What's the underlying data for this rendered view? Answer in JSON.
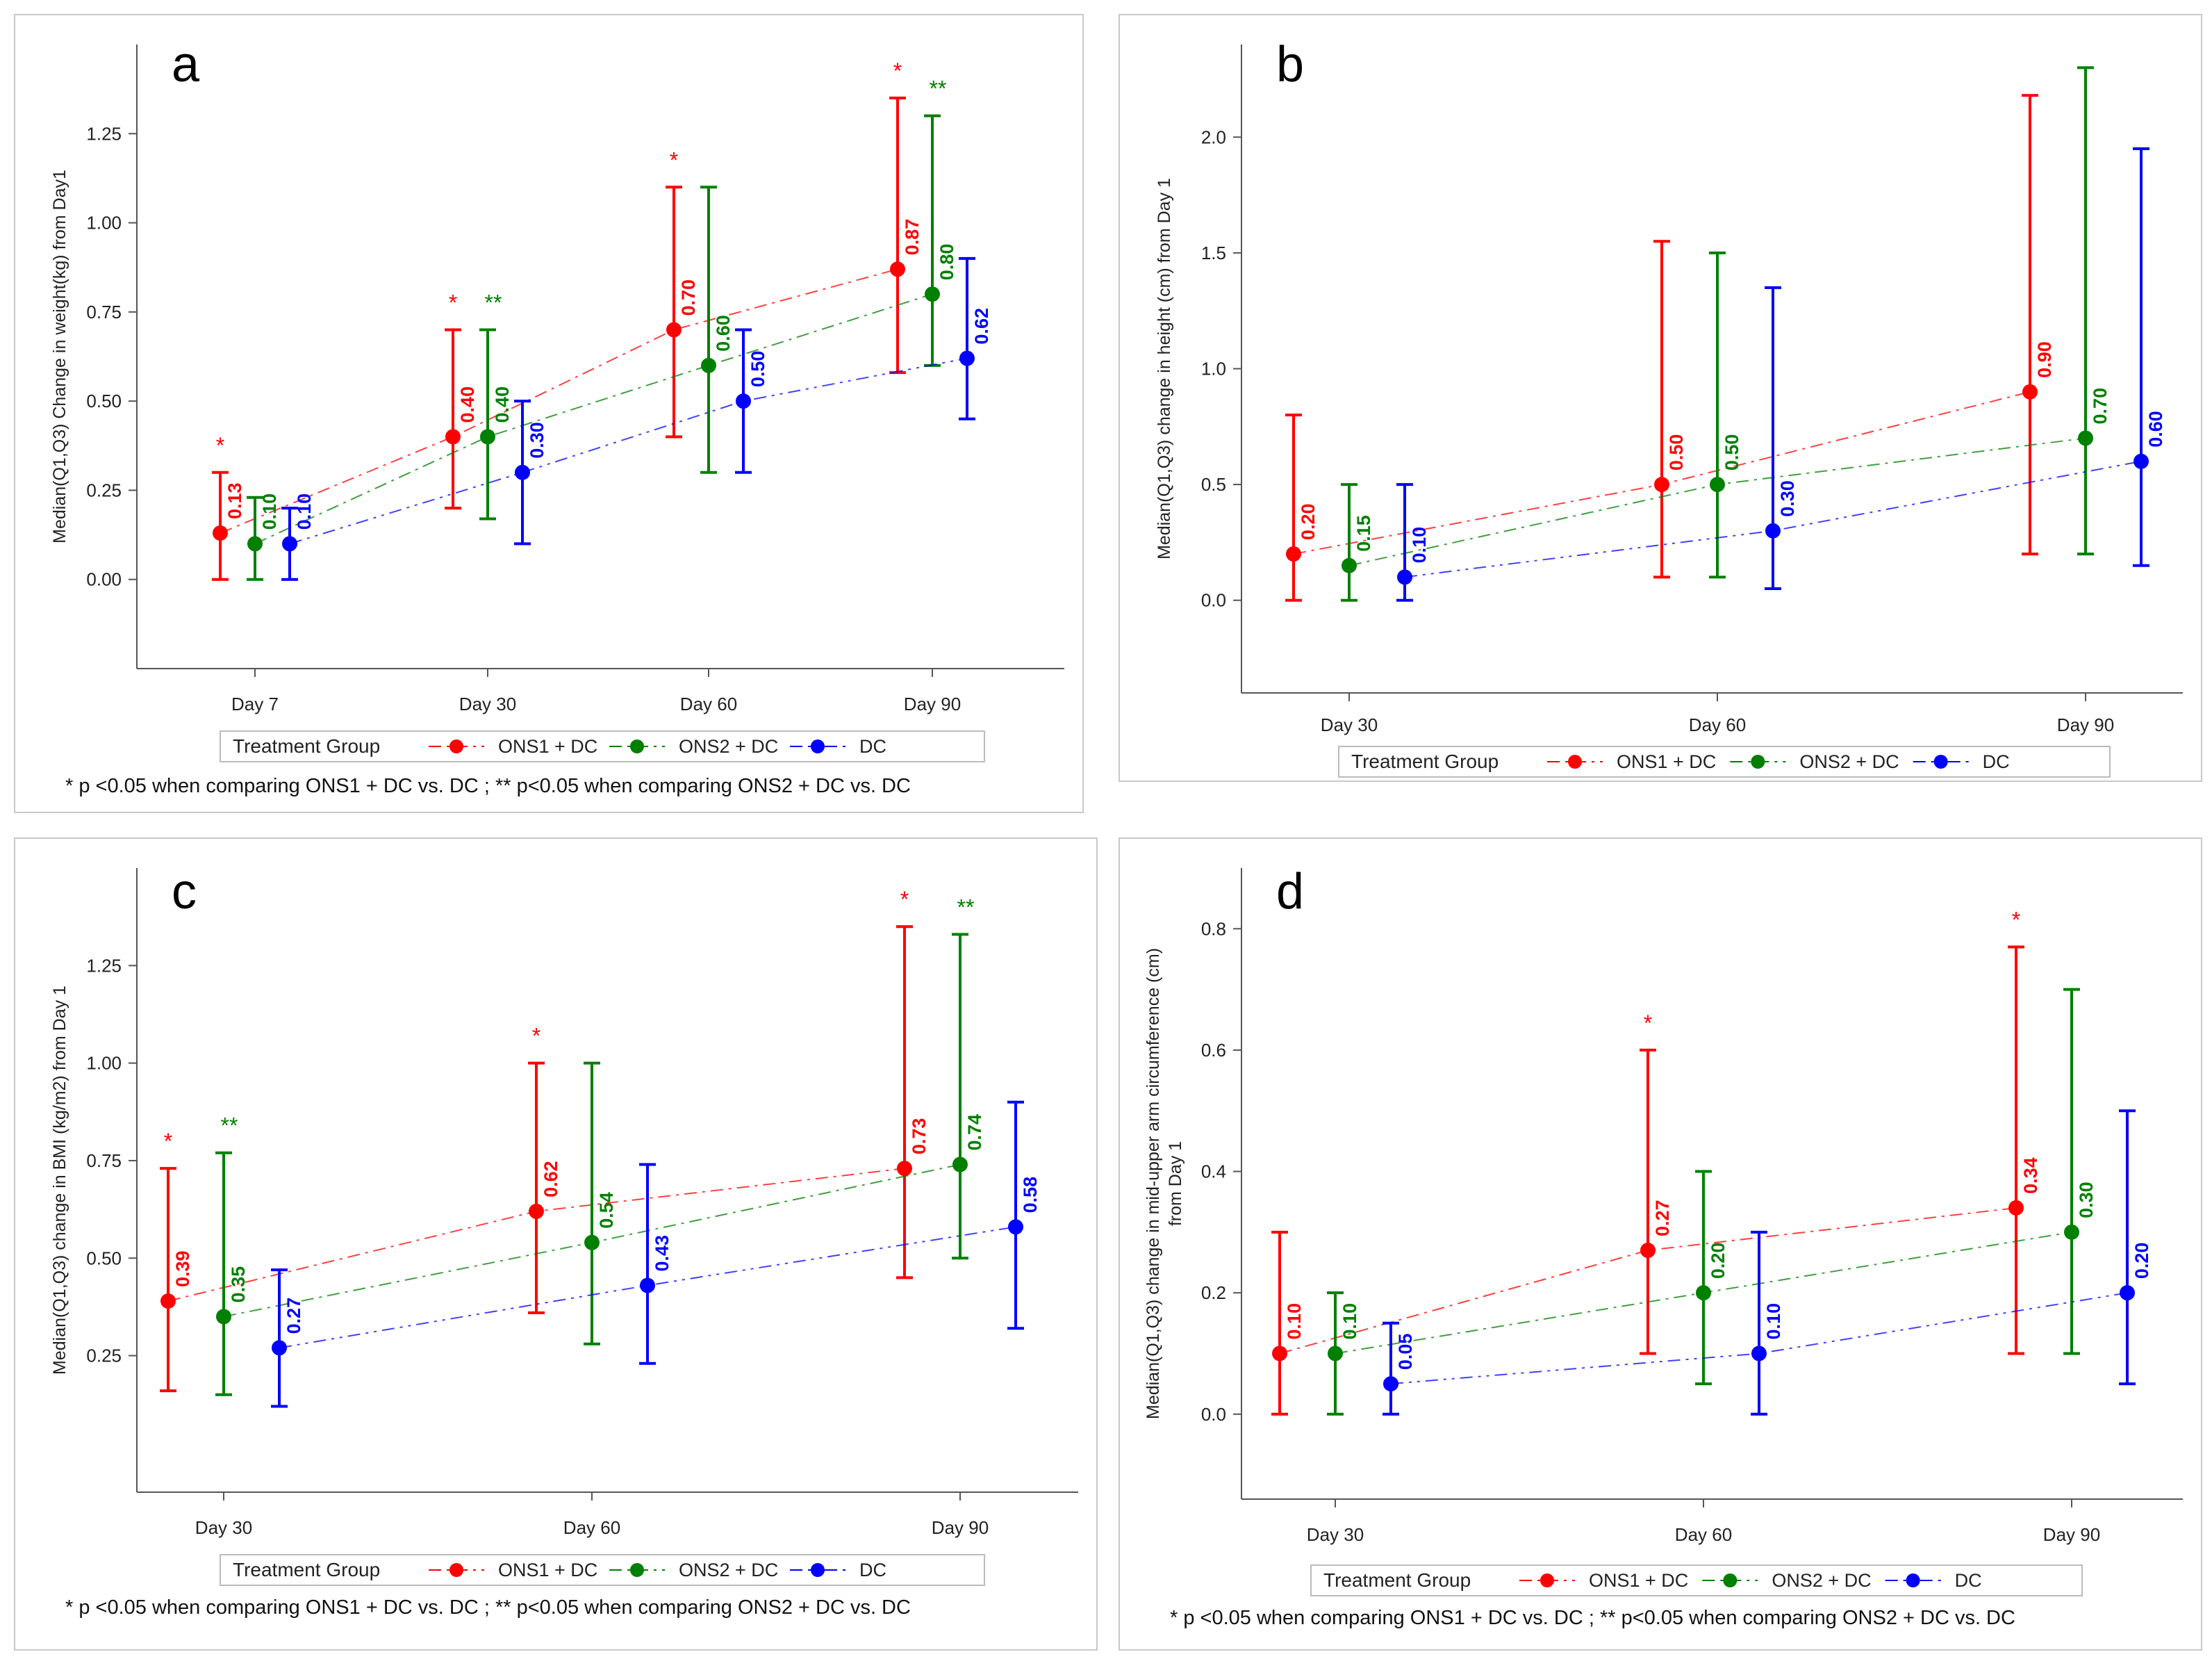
{
  "legend": {
    "title": "Treatment Group",
    "entries": [
      "ONS1 + DC",
      "ONS2 + DC",
      "DC"
    ]
  },
  "colors": {
    "ONS1 + DC": "#ff0000",
    "ONS2 + DC": "#008000",
    "DC": "#0000ff"
  },
  "chart_data": [
    {
      "panel_label": "a",
      "type": "line",
      "ylabel": "Median(Q1,Q3)  Change in weight(kg) from Day1",
      "ylabel_lines": [
        "Median(Q1,Q3)  Change in weight(kg) from Day1"
      ],
      "ylim": [
        -0.25,
        1.5
      ],
      "yticks": [
        "0.00",
        "0.25",
        "0.50",
        "0.75",
        "1.00",
        "1.25"
      ],
      "categories": [
        "Day 7",
        "Day 30",
        "Day 60",
        "Day 90"
      ],
      "series": [
        {
          "name": "ONS1 + DC",
          "median": [
            0.13,
            0.4,
            0.7,
            0.87
          ],
          "labels": [
            "0.13",
            "0.40",
            "0.70",
            "0.87"
          ],
          "q1": [
            0.0,
            0.2,
            0.4,
            0.58
          ],
          "q3": [
            0.3,
            0.7,
            1.1,
            1.35
          ],
          "stars": [
            "*",
            "*",
            "*",
            "*"
          ]
        },
        {
          "name": "ONS2 + DC",
          "median": [
            0.1,
            0.4,
            0.6,
            0.8
          ],
          "labels": [
            "0.10",
            "0.40",
            "0.60",
            "0.80"
          ],
          "q1": [
            0.0,
            0.17,
            0.3,
            0.6
          ],
          "q3": [
            0.23,
            0.7,
            1.1,
            1.3
          ],
          "stars": [
            "",
            "**",
            "",
            "**"
          ]
        },
        {
          "name": "DC",
          "median": [
            0.1,
            0.3,
            0.5,
            0.62
          ],
          "labels": [
            "0.10",
            "0.30",
            "0.50",
            "0.62"
          ],
          "q1": [
            0.0,
            0.1,
            0.3,
            0.45
          ],
          "q3": [
            0.2,
            0.5,
            0.7,
            0.9
          ],
          "stars": [
            "",
            "",
            "",
            ""
          ]
        }
      ],
      "footnote": "* p <0.05 when comparing ONS1 + DC vs. DC ; ** p<0.05 when comparing ONS2 + DC vs. DC"
    },
    {
      "panel_label": "b",
      "type": "line",
      "ylabel": "Median(Q1,Q3)  change in height (cm) from Day 1",
      "ylabel_lines": [
        "Median(Q1,Q3)  change in height (cm) from Day 1"
      ],
      "ylim": [
        -0.4,
        2.4
      ],
      "yticks": [
        "0.0",
        "0.5",
        "1.0",
        "1.5",
        "2.0"
      ],
      "categories": [
        "Day 30",
        "Day 60",
        "Day 90"
      ],
      "series": [
        {
          "name": "ONS1 + DC",
          "median": [
            0.2,
            0.5,
            0.9
          ],
          "labels": [
            "0.20",
            "0.50",
            "0.90"
          ],
          "q1": [
            0.0,
            0.1,
            0.2
          ],
          "q3": [
            0.8,
            1.55,
            2.18
          ],
          "stars": [
            "",
            "",
            ""
          ]
        },
        {
          "name": "ONS2 + DC",
          "median": [
            0.15,
            0.5,
            0.7
          ],
          "labels": [
            "0.15",
            "0.50",
            "0.70"
          ],
          "q1": [
            0.0,
            0.1,
            0.2
          ],
          "q3": [
            0.5,
            1.5,
            2.3
          ],
          "stars": [
            "",
            "",
            ""
          ]
        },
        {
          "name": "DC",
          "median": [
            0.1,
            0.3,
            0.6
          ],
          "labels": [
            "0.10",
            "0.30",
            "0.60"
          ],
          "q1": [
            0.0,
            0.05,
            0.15
          ],
          "q3": [
            0.5,
            1.35,
            1.95
          ],
          "stars": [
            "",
            "",
            ""
          ]
        }
      ],
      "footnote": ""
    },
    {
      "panel_label": "c",
      "type": "line",
      "ylabel": "Median(Q1,Q3)  change in BMI (kg/m2) from Day 1",
      "ylabel_lines": [
        "Median(Q1,Q3)  change in BMI (kg/m2) from Day 1"
      ],
      "ylim": [
        -0.1,
        1.5
      ],
      "yticks": [
        "0.25",
        "0.50",
        "0.75",
        "1.00",
        "1.25"
      ],
      "categories": [
        "Day 30",
        "Day 60",
        "Day 90"
      ],
      "series": [
        {
          "name": "ONS1 + DC",
          "median": [
            0.39,
            0.62,
            0.73
          ],
          "labels": [
            "0.39",
            "0.62",
            "0.73"
          ],
          "q1": [
            0.16,
            0.36,
            0.45
          ],
          "q3": [
            0.73,
            1.0,
            1.35
          ],
          "stars": [
            "*",
            "*",
            "*"
          ]
        },
        {
          "name": "ONS2 + DC",
          "median": [
            0.35,
            0.54,
            0.74
          ],
          "labels": [
            "0.35",
            "0.54",
            "0.74"
          ],
          "q1": [
            0.15,
            0.28,
            0.5
          ],
          "q3": [
            0.77,
            1.0,
            1.33
          ],
          "stars": [
            "**",
            "",
            "**"
          ]
        },
        {
          "name": "DC",
          "median": [
            0.27,
            0.43,
            0.58
          ],
          "labels": [
            "0.27",
            "0.43",
            "0.58"
          ],
          "q1": [
            0.12,
            0.23,
            0.32
          ],
          "q3": [
            0.47,
            0.74,
            0.9
          ],
          "stars": [
            "",
            "",
            ""
          ]
        }
      ],
      "footnote": "* p <0.05 when comparing ONS1 + DC vs. DC ; ** p<0.05 when comparing ONS2 + DC vs. DC"
    },
    {
      "panel_label": "d",
      "type": "line",
      "ylabel": "Median(Q1,Q3)  change in mid-upper arm circumference (cm) from Day 1",
      "ylabel_lines": [
        "Median(Q1,Q3)  change in mid-upper arm circumference (cm)",
        "from Day 1"
      ],
      "ylim": [
        -0.14,
        0.9
      ],
      "yticks": [
        "0.0",
        "0.2",
        "0.4",
        "0.6",
        "0.8"
      ],
      "categories": [
        "Day 30",
        "Day 60",
        "Day 90"
      ],
      "series": [
        {
          "name": "ONS1 + DC",
          "median": [
            0.1,
            0.27,
            0.34
          ],
          "labels": [
            "0.10",
            "0.27",
            "0.34"
          ],
          "q1": [
            0.0,
            0.1,
            0.1
          ],
          "q3": [
            0.3,
            0.6,
            0.77
          ],
          "stars": [
            "",
            "*",
            "*"
          ]
        },
        {
          "name": "ONS2 + DC",
          "median": [
            0.1,
            0.2,
            0.3
          ],
          "labels": [
            "0.10",
            "0.20",
            "0.30"
          ],
          "q1": [
            0.0,
            0.05,
            0.1
          ],
          "q3": [
            0.2,
            0.4,
            0.7
          ],
          "stars": [
            "",
            "",
            ""
          ]
        },
        {
          "name": "DC",
          "median": [
            0.05,
            0.1,
            0.2
          ],
          "labels": [
            "0.05",
            "0.10",
            "0.20"
          ],
          "q1": [
            0.0,
            0.0,
            0.05
          ],
          "q3": [
            0.15,
            0.3,
            0.5
          ],
          "stars": [
            "",
            "",
            ""
          ]
        }
      ],
      "footnote": "* p <0.05 when comparing ONS1 + DC vs. DC ; ** p<0.05 when comparing ONS2 + DC vs. DC"
    }
  ]
}
